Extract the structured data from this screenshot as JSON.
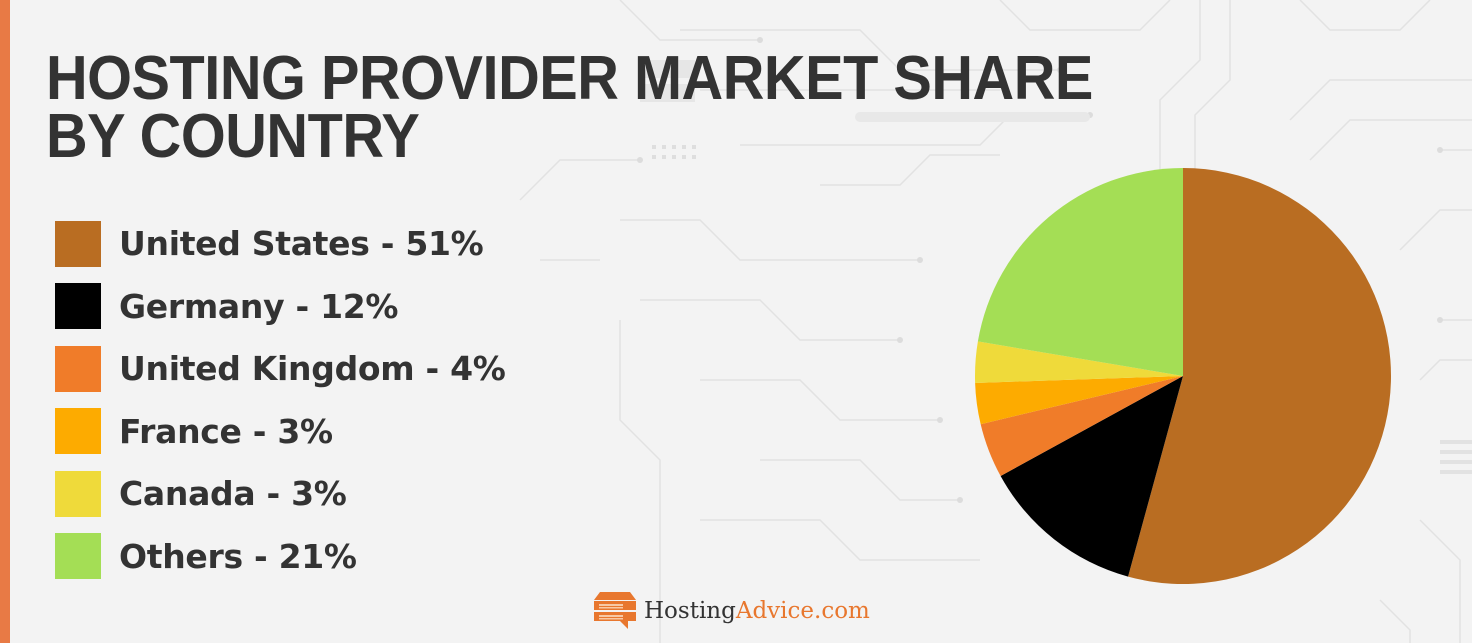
{
  "title": {
    "line1": "HOSTING PROVIDER MARKET SHARE",
    "line2": "BY COUNTRY"
  },
  "legend": [
    {
      "label": "United States - 51%",
      "color": "#b96d22"
    },
    {
      "label": "Germany - 12%",
      "color": "#000000"
    },
    {
      "label": "United Kingdom - 4%",
      "color": "#f07c29"
    },
    {
      "label": "France - 3%",
      "color": "#fdab00"
    },
    {
      "label": "Canada - 3%",
      "color": "#efda3a"
    },
    {
      "label": "Others - 21%",
      "color": "#a4de55"
    }
  ],
  "logo": {
    "icon": "server-speech-bubble-icon",
    "text_primary": "Hosting",
    "text_accent": "Advice.com"
  },
  "colors": {
    "accent_strip": "#e87a45",
    "background": "#f3f3f3",
    "title_text": "#333333"
  },
  "chart_data": {
    "type": "pie",
    "title": "HOSTING PROVIDER MARKET SHARE BY COUNTRY",
    "categories": [
      "United States",
      "Germany",
      "United Kingdom",
      "France",
      "Canada",
      "Others"
    ],
    "values": [
      51,
      12,
      4,
      3,
      3,
      21
    ],
    "unit": "%",
    "colors": [
      "#b96d22",
      "#000000",
      "#f07c29",
      "#fdab00",
      "#efda3a",
      "#a4de55"
    ],
    "start_angle": "12 o'clock",
    "direction": "clockwise",
    "legend_position": "left"
  }
}
